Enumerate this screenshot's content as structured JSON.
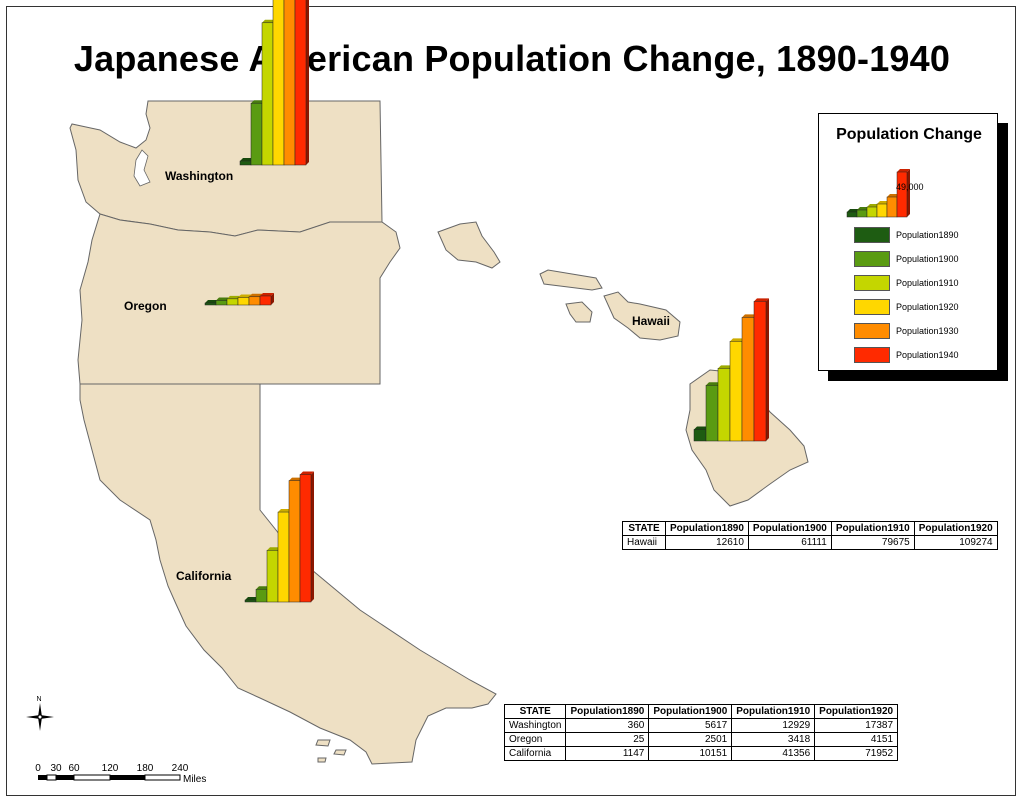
{
  "title": "Japanese American Population Change, 1890-1940",
  "states": {
    "washington": "Washington",
    "oregon": "Oregon",
    "california": "California",
    "hawaii": "Hawaii"
  },
  "colors": {
    "land": "#eee0c4",
    "outline": "#666666",
    "p1890": "#1e5c12",
    "p1900": "#5a9b12",
    "p1910": "#c4d600",
    "p1920": "#ffd700",
    "p1930": "#ff8c00",
    "p1940": "#ff2a00"
  },
  "legend": {
    "title": "Population Change",
    "scale_value": "49,000",
    "items": [
      "Population1890",
      "Population1900",
      "Population1910",
      "Population1920",
      "Population1930",
      "Population1940"
    ]
  },
  "chart_data": {
    "type": "bar",
    "categories": [
      "Population1890",
      "Population1900",
      "Population1910",
      "Population1920"
    ],
    "states": [
      {
        "name": "Hawaii",
        "values": [
          12610,
          61111,
          79675,
          109274
        ]
      },
      {
        "name": "Washington",
        "values": [
          360,
          5617,
          12929,
          17387
        ]
      },
      {
        "name": "Oregon",
        "values": [
          25,
          2501,
          3418,
          4151
        ]
      },
      {
        "name": "California",
        "values": [
          1147,
          10151,
          41356,
          71952
        ]
      }
    ]
  },
  "tables": {
    "hawaii": {
      "headers": [
        "STATE",
        "Population1890",
        "Population1900",
        "Population1910",
        "Population1920"
      ],
      "rows": [
        [
          "Hawaii",
          "12610",
          "61111",
          "79675",
          "109274"
        ]
      ]
    },
    "mainland": {
      "headers": [
        "STATE",
        "Population1890",
        "Population1900",
        "Population1910",
        "Population1920"
      ],
      "rows": [
        [
          "Washington",
          "360",
          "5617",
          "12929",
          "17387"
        ],
        [
          "Oregon",
          "25",
          "2501",
          "3418",
          "4151"
        ],
        [
          "California",
          "1147",
          "10151",
          "41356",
          "71952"
        ]
      ]
    }
  },
  "compass": {
    "north": "N"
  },
  "scale": {
    "ticks": [
      "0",
      "30",
      "60",
      "120",
      "180",
      "240"
    ],
    "unit": "Miles"
  }
}
